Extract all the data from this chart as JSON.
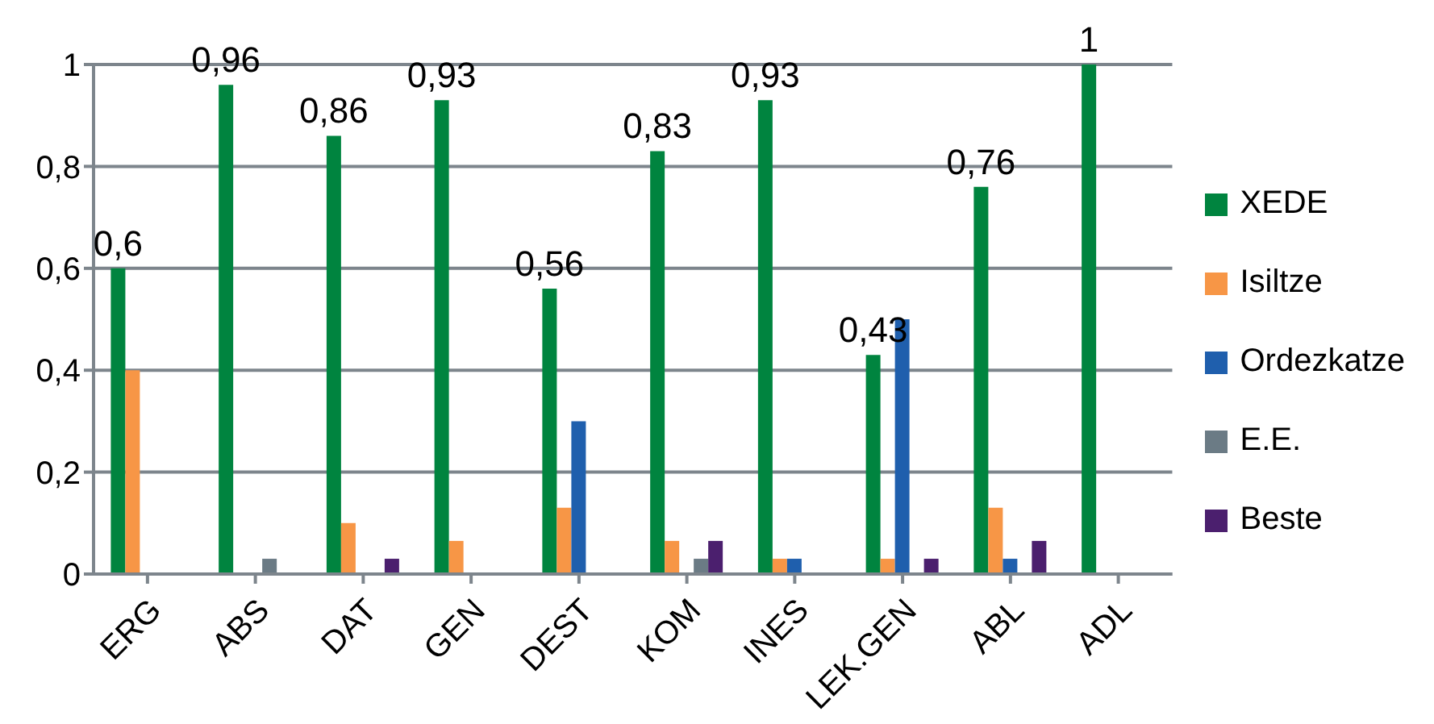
{
  "chart_data": {
    "type": "bar",
    "categories": [
      "ERG",
      "ABS",
      "DAT",
      "GEN",
      "DEST",
      "KOM",
      "INES",
      "LEK.GEN",
      "ABL",
      "ADL"
    ],
    "series": [
      {
        "name": "XEDE",
        "color": "#00843f",
        "values": [
          0.6,
          0.96,
          0.86,
          0.93,
          0.56,
          0.83,
          0.93,
          0.43,
          0.76,
          1
        ],
        "value_labels": [
          "0,6",
          "0,96",
          "0,86",
          "0,93",
          "0,56",
          "0,83",
          "0,93",
          "0,43",
          "0,76",
          "1"
        ]
      },
      {
        "name": "Isiltze",
        "color": "#f79646",
        "values": [
          0.4,
          0,
          0.1,
          0.065,
          0.13,
          0.065,
          0.03,
          0.03,
          0.13,
          0
        ]
      },
      {
        "name": "Ordezkatze",
        "color": "#1f5fad",
        "values": [
          0,
          0,
          0,
          0,
          0.3,
          0,
          0.03,
          0.5,
          0.03,
          0
        ]
      },
      {
        "name": "E.E.",
        "color": "#6b7b85",
        "values": [
          0,
          0.03,
          0,
          0,
          0,
          0.03,
          0,
          0,
          0,
          0
        ]
      },
      {
        "name": "Beste",
        "color": "#4b1f6e",
        "values": [
          0,
          0,
          0.03,
          0,
          0,
          0.065,
          0,
          0.03,
          0.065,
          0
        ]
      }
    ],
    "ylim": [
      0,
      1
    ],
    "yticks": [
      0,
      {
        "value": 0.2,
        "label": "0,2"
      },
      {
        "value": 0.4,
        "label": "0,4"
      },
      {
        "value": 0.6,
        "label": "0,6"
      },
      {
        "value": 0.8,
        "label": "0,8"
      },
      1
    ],
    "grid": "y",
    "legend": "right"
  }
}
